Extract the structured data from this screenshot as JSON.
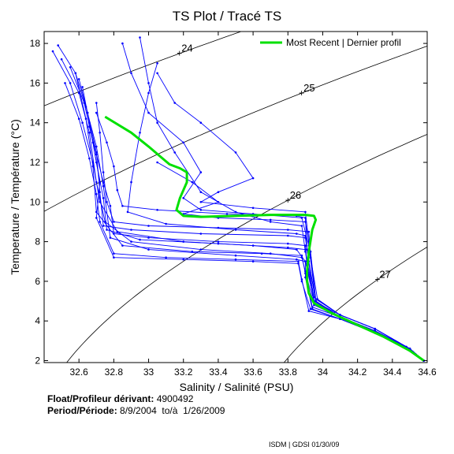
{
  "chart_data": {
    "type": "line",
    "title": "TS Plot / Tracé TS",
    "xlabel": "Salinity / Salinité (PSU)",
    "ylabel": "Temperature / Température (°C)",
    "xlim": [
      32.4,
      34.6
    ],
    "ylim": [
      1.9,
      18.6
    ],
    "xticks": [
      "32.6",
      "32.8",
      "33",
      "33.2",
      "33.4",
      "33.6",
      "33.8",
      "34",
      "34.2",
      "34.4",
      "34.6"
    ],
    "yticks": [
      "2",
      "4",
      "6",
      "8",
      "10",
      "12",
      "14",
      "16",
      "18"
    ],
    "grid": false,
    "legend_position": "top-right",
    "series": [
      {
        "name": "Most Recent | Dernier profil",
        "color": "#00e000",
        "x": [
          32.75,
          32.9,
          33.0,
          33.08,
          33.12,
          33.18,
          33.22,
          33.22,
          33.2,
          33.18,
          33.16,
          33.2,
          33.3,
          33.5,
          33.7,
          33.8,
          33.9,
          33.95,
          33.96,
          33.94,
          33.92,
          33.91,
          33.91,
          33.92,
          33.95,
          34.05,
          34.2,
          34.35,
          34.5,
          34.58
        ],
        "y": [
          14.3,
          13.5,
          12.8,
          12.2,
          11.9,
          11.7,
          11.5,
          11.0,
          10.6,
          10.2,
          9.6,
          9.3,
          9.25,
          9.3,
          9.35,
          9.35,
          9.35,
          9.3,
          9.1,
          8.6,
          7.5,
          6.5,
          6.0,
          5.4,
          4.9,
          4.4,
          3.8,
          3.2,
          2.5,
          2.0
        ]
      }
    ],
    "historical_profiles": {
      "color": "#0000ff",
      "description_count": 0,
      "profiles": [
        {
          "x": [
            32.45,
            32.55,
            32.62,
            32.68,
            32.72,
            32.82,
            33.2,
            33.6,
            33.85,
            33.9,
            33.95,
            34.1,
            34.3,
            34.5,
            34.58
          ],
          "y": [
            17.6,
            16.0,
            14.0,
            12.0,
            10.0,
            8.5,
            8.0,
            7.8,
            7.6,
            7.0,
            5.0,
            4.3,
            3.6,
            2.6,
            2.0
          ]
        },
        {
          "x": [
            32.5,
            32.6,
            32.66,
            32.7,
            32.75,
            32.9,
            33.3,
            33.7,
            33.88,
            33.9,
            33.95,
            34.1,
            34.3,
            34.48,
            34.58
          ],
          "y": [
            17.2,
            15.5,
            13.5,
            11.0,
            9.0,
            8.0,
            7.6,
            7.4,
            7.2,
            6.5,
            4.8,
            4.2,
            3.5,
            2.7,
            2.0
          ]
        },
        {
          "x": [
            32.55,
            32.63,
            32.68,
            32.72,
            32.7,
            32.8,
            33.2,
            33.6,
            33.86,
            33.88,
            33.93,
            34.1,
            34.3,
            34.5,
            34.58
          ],
          "y": [
            16.8,
            15.0,
            13.0,
            11.0,
            9.2,
            7.2,
            7.1,
            7.0,
            6.9,
            6.0,
            4.6,
            4.1,
            3.4,
            2.5,
            2.0
          ]
        },
        {
          "x": [
            32.6,
            32.65,
            32.7,
            32.72,
            32.74,
            32.9,
            33.3,
            33.8,
            33.9,
            33.92,
            33.96,
            34.1,
            34.3,
            34.5,
            34.58
          ],
          "y": [
            16.2,
            14.5,
            12.5,
            10.5,
            8.8,
            8.6,
            8.4,
            8.3,
            8.2,
            7.0,
            5.0,
            4.2,
            3.5,
            2.6,
            2.0
          ]
        },
        {
          "x": [
            32.48,
            32.58,
            32.64,
            32.68,
            32.7,
            32.85,
            33.25,
            33.65,
            33.88,
            33.9,
            33.94,
            34.1,
            34.3,
            34.5,
            34.58
          ],
          "y": [
            17.9,
            16.5,
            14.2,
            11.8,
            9.5,
            7.8,
            7.5,
            7.4,
            7.3,
            6.4,
            4.7,
            4.2,
            3.5,
            2.6,
            2.0
          ]
        },
        {
          "x": [
            32.62,
            32.66,
            32.7,
            32.74,
            32.76,
            32.95,
            33.4,
            33.8,
            33.9,
            33.91,
            33.95,
            34.1,
            34.3,
            34.5,
            34.58
          ],
          "y": [
            15.8,
            14.0,
            12.0,
            10.2,
            8.6,
            8.1,
            7.9,
            7.7,
            7.6,
            6.8,
            4.9,
            4.2,
            3.5,
            2.6,
            2.0
          ]
        },
        {
          "x": [
            32.7,
            32.72,
            32.74,
            32.76,
            32.8,
            33.0,
            33.4,
            33.8,
            33.92,
            33.93,
            33.97,
            34.1,
            34.3,
            34.5,
            34.58
          ],
          "y": [
            15.0,
            13.5,
            11.5,
            10.0,
            9.0,
            8.8,
            8.7,
            8.6,
            8.5,
            7.2,
            5.1,
            4.3,
            3.6,
            2.6,
            2.0
          ]
        },
        {
          "x": [
            32.58,
            32.64,
            32.7,
            32.74,
            32.78,
            33.0,
            33.5,
            33.85,
            33.9,
            33.9,
            33.94,
            34.1,
            34.3,
            34.5,
            34.58
          ],
          "y": [
            16.5,
            14.8,
            12.8,
            10.8,
            8.2,
            7.6,
            7.3,
            7.1,
            7.0,
            6.2,
            4.6,
            4.1,
            3.4,
            2.5,
            2.0
          ]
        },
        {
          "x": [
            33.05,
            33.0,
            32.95,
            32.9,
            32.88,
            33.1,
            33.5,
            33.85,
            33.9,
            33.92,
            33.96,
            34.1,
            34.3,
            34.5,
            34.58
          ],
          "y": [
            17.0,
            15.5,
            13.5,
            11.0,
            9.5,
            8.9,
            8.6,
            8.4,
            8.3,
            7.0,
            5.0,
            4.2,
            3.5,
            2.6,
            2.0
          ]
        },
        {
          "x": [
            32.95,
            33.0,
            33.05,
            33.15,
            33.3,
            33.5,
            33.7,
            33.88,
            33.9,
            33.95,
            34.1,
            34.3,
            34.5,
            34.58
          ],
          "y": [
            18.3,
            16.0,
            14.0,
            12.5,
            10.5,
            9.5,
            9.0,
            8.8,
            7.5,
            5.2,
            4.3,
            3.6,
            2.6,
            2.0
          ]
        },
        {
          "x": [
            32.85,
            32.9,
            33.0,
            33.2,
            33.3,
            33.2,
            33.3,
            33.6,
            33.88,
            33.92,
            33.96,
            34.1,
            34.3,
            34.5,
            34.58
          ],
          "y": [
            18.0,
            16.5,
            14.5,
            13.0,
            11.5,
            10.2,
            9.6,
            9.4,
            9.2,
            7.8,
            5.0,
            4.2,
            3.5,
            2.6,
            2.0
          ]
        },
        {
          "x": [
            33.05,
            33.15,
            33.3,
            33.5,
            33.6,
            33.4,
            33.3,
            33.6,
            33.9,
            33.92,
            33.96,
            34.1,
            34.3,
            34.5,
            34.58
          ],
          "y": [
            16.5,
            15.0,
            14.0,
            12.5,
            11.2,
            10.5,
            10.0,
            9.7,
            9.5,
            8.0,
            5.0,
            4.2,
            3.5,
            2.6,
            2.0
          ]
        },
        {
          "x": [
            32.7,
            32.76,
            32.8,
            32.82,
            32.85,
            33.05,
            33.45,
            33.85,
            33.9,
            33.91,
            33.95,
            34.1,
            34.3,
            34.5,
            34.58
          ],
          "y": [
            14.5,
            13.0,
            11.8,
            10.6,
            9.8,
            9.6,
            9.4,
            9.3,
            9.2,
            7.6,
            5.0,
            4.2,
            3.5,
            2.6,
            2.0
          ]
        },
        {
          "x": [
            32.52,
            32.6,
            32.66,
            32.7,
            32.72,
            32.8,
            33.1,
            33.5,
            33.86,
            33.88,
            33.92,
            34.1,
            34.3,
            34.5,
            34.58
          ],
          "y": [
            16.0,
            14.2,
            12.2,
            10.4,
            9.0,
            7.4,
            7.2,
            7.1,
            7.0,
            6.1,
            4.5,
            4.1,
            3.4,
            2.5,
            2.0
          ]
        },
        {
          "x": [
            33.05,
            33.25,
            33.4,
            33.2,
            33.4,
            33.7,
            33.9,
            33.93,
            33.96,
            34.1,
            34.3,
            34.5,
            34.58
          ],
          "y": [
            12.0,
            11.0,
            10.0,
            9.4,
            9.2,
            9.1,
            9.0,
            7.5,
            5.1,
            4.3,
            3.6,
            2.6,
            2.0
          ]
        },
        {
          "x": [
            32.66,
            32.7,
            32.74,
            32.78,
            32.8,
            33.0,
            33.4,
            33.8,
            33.9,
            33.91,
            33.95,
            34.1,
            34.3,
            34.5,
            34.58
          ],
          "y": [
            13.8,
            12.4,
            11.0,
            9.8,
            8.4,
            8.2,
            8.0,
            7.9,
            7.8,
            6.9,
            4.9,
            4.2,
            3.5,
            2.6,
            2.0
          ]
        }
      ]
    },
    "sigma_contours": [
      {
        "label": "24",
        "values": [
          24
        ]
      },
      {
        "label": "25",
        "values": [
          25
        ]
      },
      {
        "label": "26",
        "values": [
          26
        ]
      },
      {
        "label": "27",
        "values": [
          27
        ]
      }
    ]
  },
  "meta": {
    "float_label": "Float/Profileur dérivant:",
    "float_value": "4900492",
    "period_label": "Period/Période:",
    "period_value": "8/9/2004  to/à  1/26/2009",
    "credit": "ISDM | GDSI  01/30/09"
  }
}
